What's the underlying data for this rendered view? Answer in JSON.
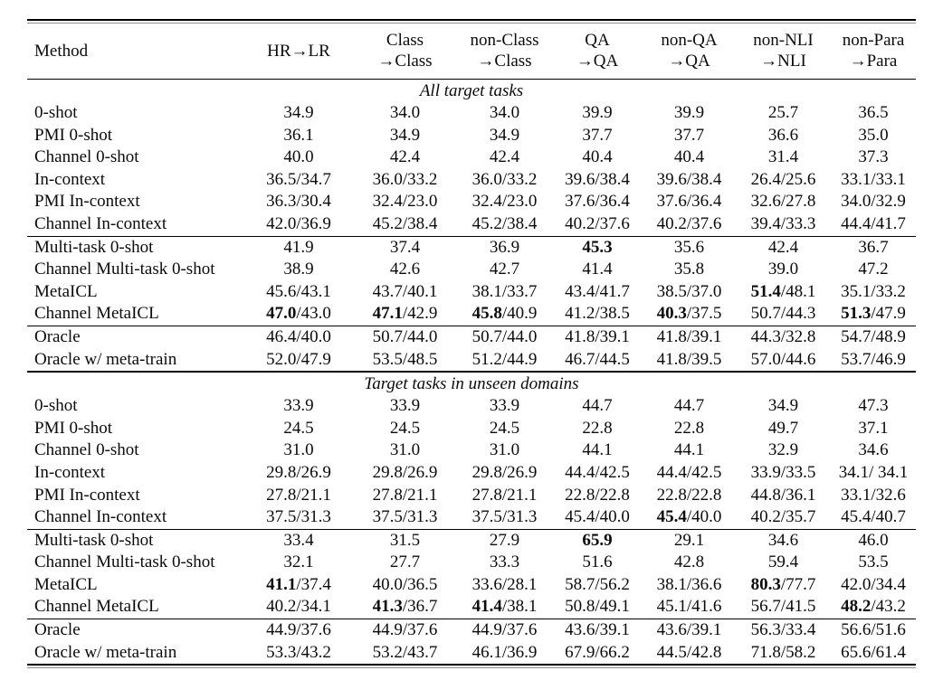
{
  "table": {
    "header": [
      "Method",
      "HR→LR",
      "Class\n→Class",
      "non-Class\n→Class",
      "QA\n→QA",
      "non-QA\n→QA",
      "non-NLI\n→NLI",
      "non-Para\n→Para"
    ],
    "sections": [
      {
        "title": "All target tasks",
        "groups": [
          {
            "rows": [
              [
                "0-shot",
                "34.9",
                "34.0",
                "34.0",
                "39.9",
                "39.9",
                "25.7",
                "36.5"
              ],
              [
                "PMI 0-shot",
                "36.1",
                "34.9",
                "34.9",
                "37.7",
                "37.7",
                "36.6",
                "35.0"
              ],
              [
                "Channel 0-shot",
                "40.0",
                "42.4",
                "42.4",
                "40.4",
                "40.4",
                "31.4",
                "37.3"
              ],
              [
                "In-context",
                "36.5/34.7",
                "36.0/33.2",
                "36.0/33.2",
                "39.6/38.4",
                "39.6/38.4",
                "26.4/25.6",
                "33.1/33.1"
              ],
              [
                "PMI In-context",
                "36.3/30.4",
                "32.4/23.0",
                "32.4/23.0",
                "37.6/36.4",
                "37.6/36.4",
                "32.6/27.8",
                "34.0/32.9"
              ],
              [
                "Channel In-context",
                "42.0/36.9",
                "45.2/38.4",
                "45.2/38.4",
                "40.2/37.6",
                "40.2/37.6",
                "39.4/33.3",
                "44.4/41.7"
              ]
            ]
          },
          {
            "rows": [
              [
                "Multi-task 0-shot",
                "41.9",
                "37.4",
                "36.9",
                "**45.3**",
                "35.6",
                "42.4",
                "36.7"
              ],
              [
                "Channel Multi-task 0-shot",
                "38.9",
                "42.6",
                "42.7",
                "41.4",
                "35.8",
                "39.0",
                "47.2"
              ],
              [
                "MetaICL",
                "45.6/43.1",
                "43.7/40.1",
                "38.1/33.7",
                "43.4/41.7",
                "38.5/37.0",
                "**51.4**/48.1",
                "35.1/33.2"
              ],
              [
                "Channel MetaICL",
                "**47.0**/43.0",
                "**47.1**/42.9",
                "**45.8**/40.9",
                "41.2/38.5",
                "**40.3**/37.5",
                "50.7/44.3",
                "**51.3**/47.9"
              ]
            ]
          },
          {
            "rows": [
              [
                "Oracle",
                "46.4/40.0",
                "50.7/44.0",
                "50.7/44.0",
                "41.8/39.1",
                "41.8/39.1",
                "44.3/32.8",
                "54.7/48.9"
              ],
              [
                "Oracle w/ meta-train",
                "52.0/47.9",
                "53.5/48.5",
                "51.2/44.9",
                "46.7/44.5",
                "41.8/39.5",
                "57.0/44.6",
                "53.7/46.9"
              ]
            ]
          }
        ]
      },
      {
        "title": "Target tasks in unseen domains",
        "groups": [
          {
            "rows": [
              [
                "0-shot",
                "33.9",
                "33.9",
                "33.9",
                "44.7",
                "44.7",
                "34.9",
                "47.3"
              ],
              [
                "PMI 0-shot",
                "24.5",
                "24.5",
                "24.5",
                "22.8",
                "22.8",
                "49.7",
                "37.1"
              ],
              [
                "Channel 0-shot",
                "31.0",
                "31.0",
                "31.0",
                "44.1",
                "44.1",
                "32.9",
                "34.6"
              ],
              [
                "In-context",
                "29.8/26.9",
                "29.8/26.9",
                "29.8/26.9",
                "44.4/42.5",
                "44.4/42.5",
                "33.9/33.5",
                "34.1/ 34.1"
              ],
              [
                "PMI In-context",
                "27.8/21.1",
                "27.8/21.1",
                "27.8/21.1",
                "22.8/22.8",
                "22.8/22.8",
                "44.8/36.1",
                "33.1/32.6"
              ],
              [
                "Channel In-context",
                "37.5/31.3",
                "37.5/31.3",
                "37.5/31.3",
                "45.4/40.0",
                "**45.4**/40.0",
                "40.2/35.7",
                "45.4/40.7"
              ]
            ]
          },
          {
            "rows": [
              [
                "Multi-task 0-shot",
                "33.4",
                "31.5",
                "27.9",
                "**65.9**",
                "29.1",
                "34.6",
                "46.0"
              ],
              [
                "Channel Multi-task 0-shot",
                "32.1",
                "27.7",
                "33.3",
                "51.6",
                "42.8",
                "59.4",
                "53.5"
              ],
              [
                "MetaICL",
                "**41.1**/37.4",
                "40.0/36.5",
                "33.6/28.1",
                "58.7/56.2",
                "38.1/36.6",
                "**80.3**/77.7",
                "42.0/34.4"
              ],
              [
                "Channel MetaICL",
                "40.2/34.1",
                "**41.3**/36.7",
                "**41.4**/38.1",
                "50.8/49.1",
                "45.1/41.6",
                "56.7/41.5",
                "**48.2**/43.2"
              ]
            ]
          },
          {
            "rows": [
              [
                "Oracle",
                "44.9/37.6",
                "44.9/37.6",
                "44.9/37.6",
                "43.6/39.1",
                "43.6/39.1",
                "56.3/33.4",
                "56.6/51.6"
              ],
              [
                "Oracle w/ meta-train",
                "53.3/43.2",
                "53.2/43.7",
                "46.1/36.9",
                "67.9/66.2",
                "44.5/42.8",
                "71.8/58.2",
                "65.6/61.4"
              ]
            ]
          }
        ]
      }
    ]
  }
}
